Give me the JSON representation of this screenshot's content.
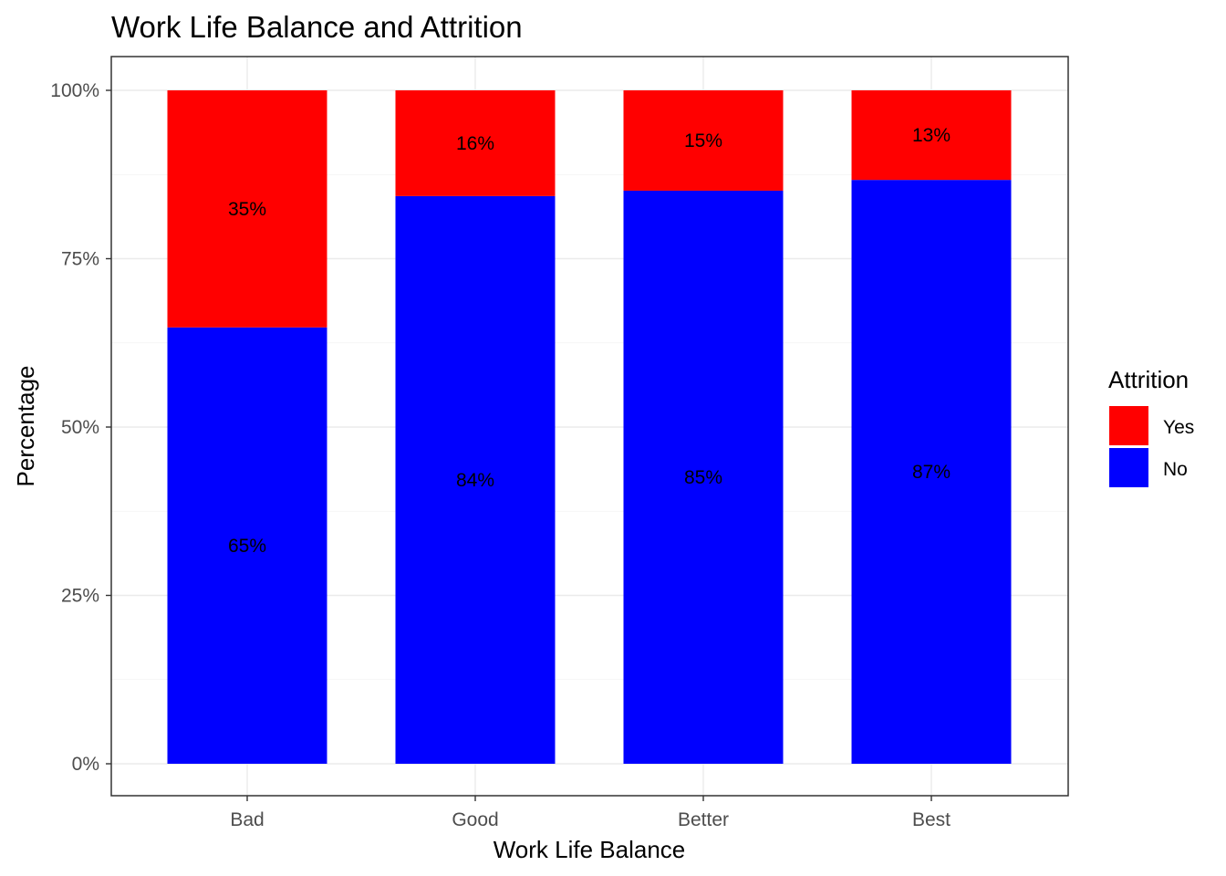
{
  "chart_data": {
    "type": "bar",
    "stacked": true,
    "title": "Work Life Balance and Attrition",
    "xlabel": "Work Life Balance",
    "ylabel": "Percentage",
    "categories": [
      "Bad",
      "Good",
      "Better",
      "Best"
    ],
    "ylim": [
      0,
      1
    ],
    "y_ticks": [
      {
        "value": 0,
        "label": "0%"
      },
      {
        "value": 0.25,
        "label": "25%"
      },
      {
        "value": 0.5,
        "label": "50%"
      },
      {
        "value": 0.75,
        "label": "75%"
      },
      {
        "value": 1,
        "label": "100%"
      }
    ],
    "grid": true,
    "legend": {
      "title": "Attrition",
      "position": "right"
    },
    "series": [
      {
        "name": "No",
        "color": "#0000ff",
        "values": [
          0.648,
          0.843,
          0.851,
          0.867
        ],
        "labels": [
          "65%",
          "84%",
          "85%",
          "87%"
        ]
      },
      {
        "name": "Yes",
        "color": "#ff0000",
        "values": [
          0.352,
          0.157,
          0.149,
          0.133
        ],
        "labels": [
          "35%",
          "16%",
          "15%",
          "13%"
        ]
      }
    ],
    "legend_order": [
      "Yes",
      "No"
    ]
  }
}
